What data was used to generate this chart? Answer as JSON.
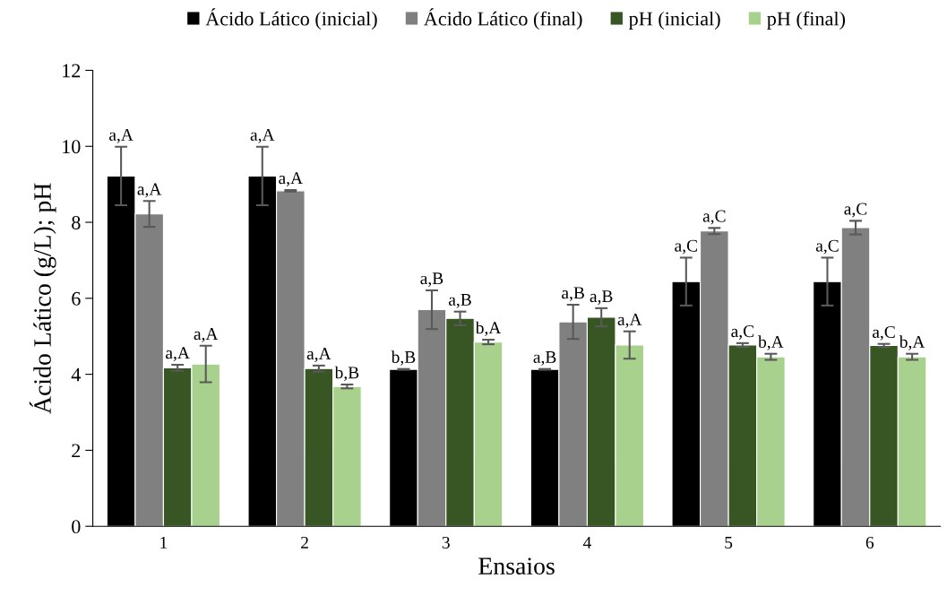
{
  "chart_data": {
    "type": "bar",
    "xlabel": "Ensaios",
    "ylabel": "Ácido Lático (g/L); pH",
    "categories": [
      "1",
      "2",
      "3",
      "4",
      "5",
      "6"
    ],
    "series": [
      {
        "name": "Ácido Lático (inicial)",
        "color": "#000000",
        "values": [
          9.22,
          9.22,
          4.13,
          4.13,
          6.44,
          6.44
        ],
        "errors": [
          0.77,
          0.77,
          0.01,
          0.01,
          0.63,
          0.63
        ],
        "value_labels": [
          "a,A",
          "a,A",
          "b,B",
          "a,B",
          "a,C",
          "a,C"
        ]
      },
      {
        "name": "Ácido Lático (final)",
        "color": "#808080",
        "values": [
          8.22,
          8.83,
          5.7,
          5.38,
          7.77,
          7.86
        ],
        "errors": [
          0.34,
          0.02,
          0.51,
          0.45,
          0.08,
          0.18
        ],
        "value_labels": [
          "a,A",
          "a,A",
          "a,B",
          "a,B",
          "a,C",
          "a,C"
        ]
      },
      {
        "name": "pH (inicial)",
        "color": "#375623",
        "values": [
          4.17,
          4.15,
          5.47,
          5.5,
          4.77,
          4.76
        ],
        "errors": [
          0.08,
          0.08,
          0.18,
          0.24,
          0.05,
          0.04
        ],
        "value_labels": [
          "a,A",
          "a,A",
          "a,B",
          "a,B",
          "a,C",
          "a,C"
        ]
      },
      {
        "name": "pH (final)",
        "color": "#a9d18e",
        "values": [
          4.27,
          3.68,
          4.85,
          4.77,
          4.46,
          4.46
        ],
        "errors": [
          0.48,
          0.05,
          0.06,
          0.36,
          0.08,
          0.08
        ],
        "value_labels": [
          "a,A",
          "b,B",
          "b,A",
          "a,A",
          "b,A",
          "b,A"
        ]
      }
    ],
    "ylim": [
      0,
      12
    ],
    "yticks": [
      0,
      2,
      4,
      6,
      8,
      10,
      12
    ],
    "grid": false,
    "legend": "top"
  }
}
